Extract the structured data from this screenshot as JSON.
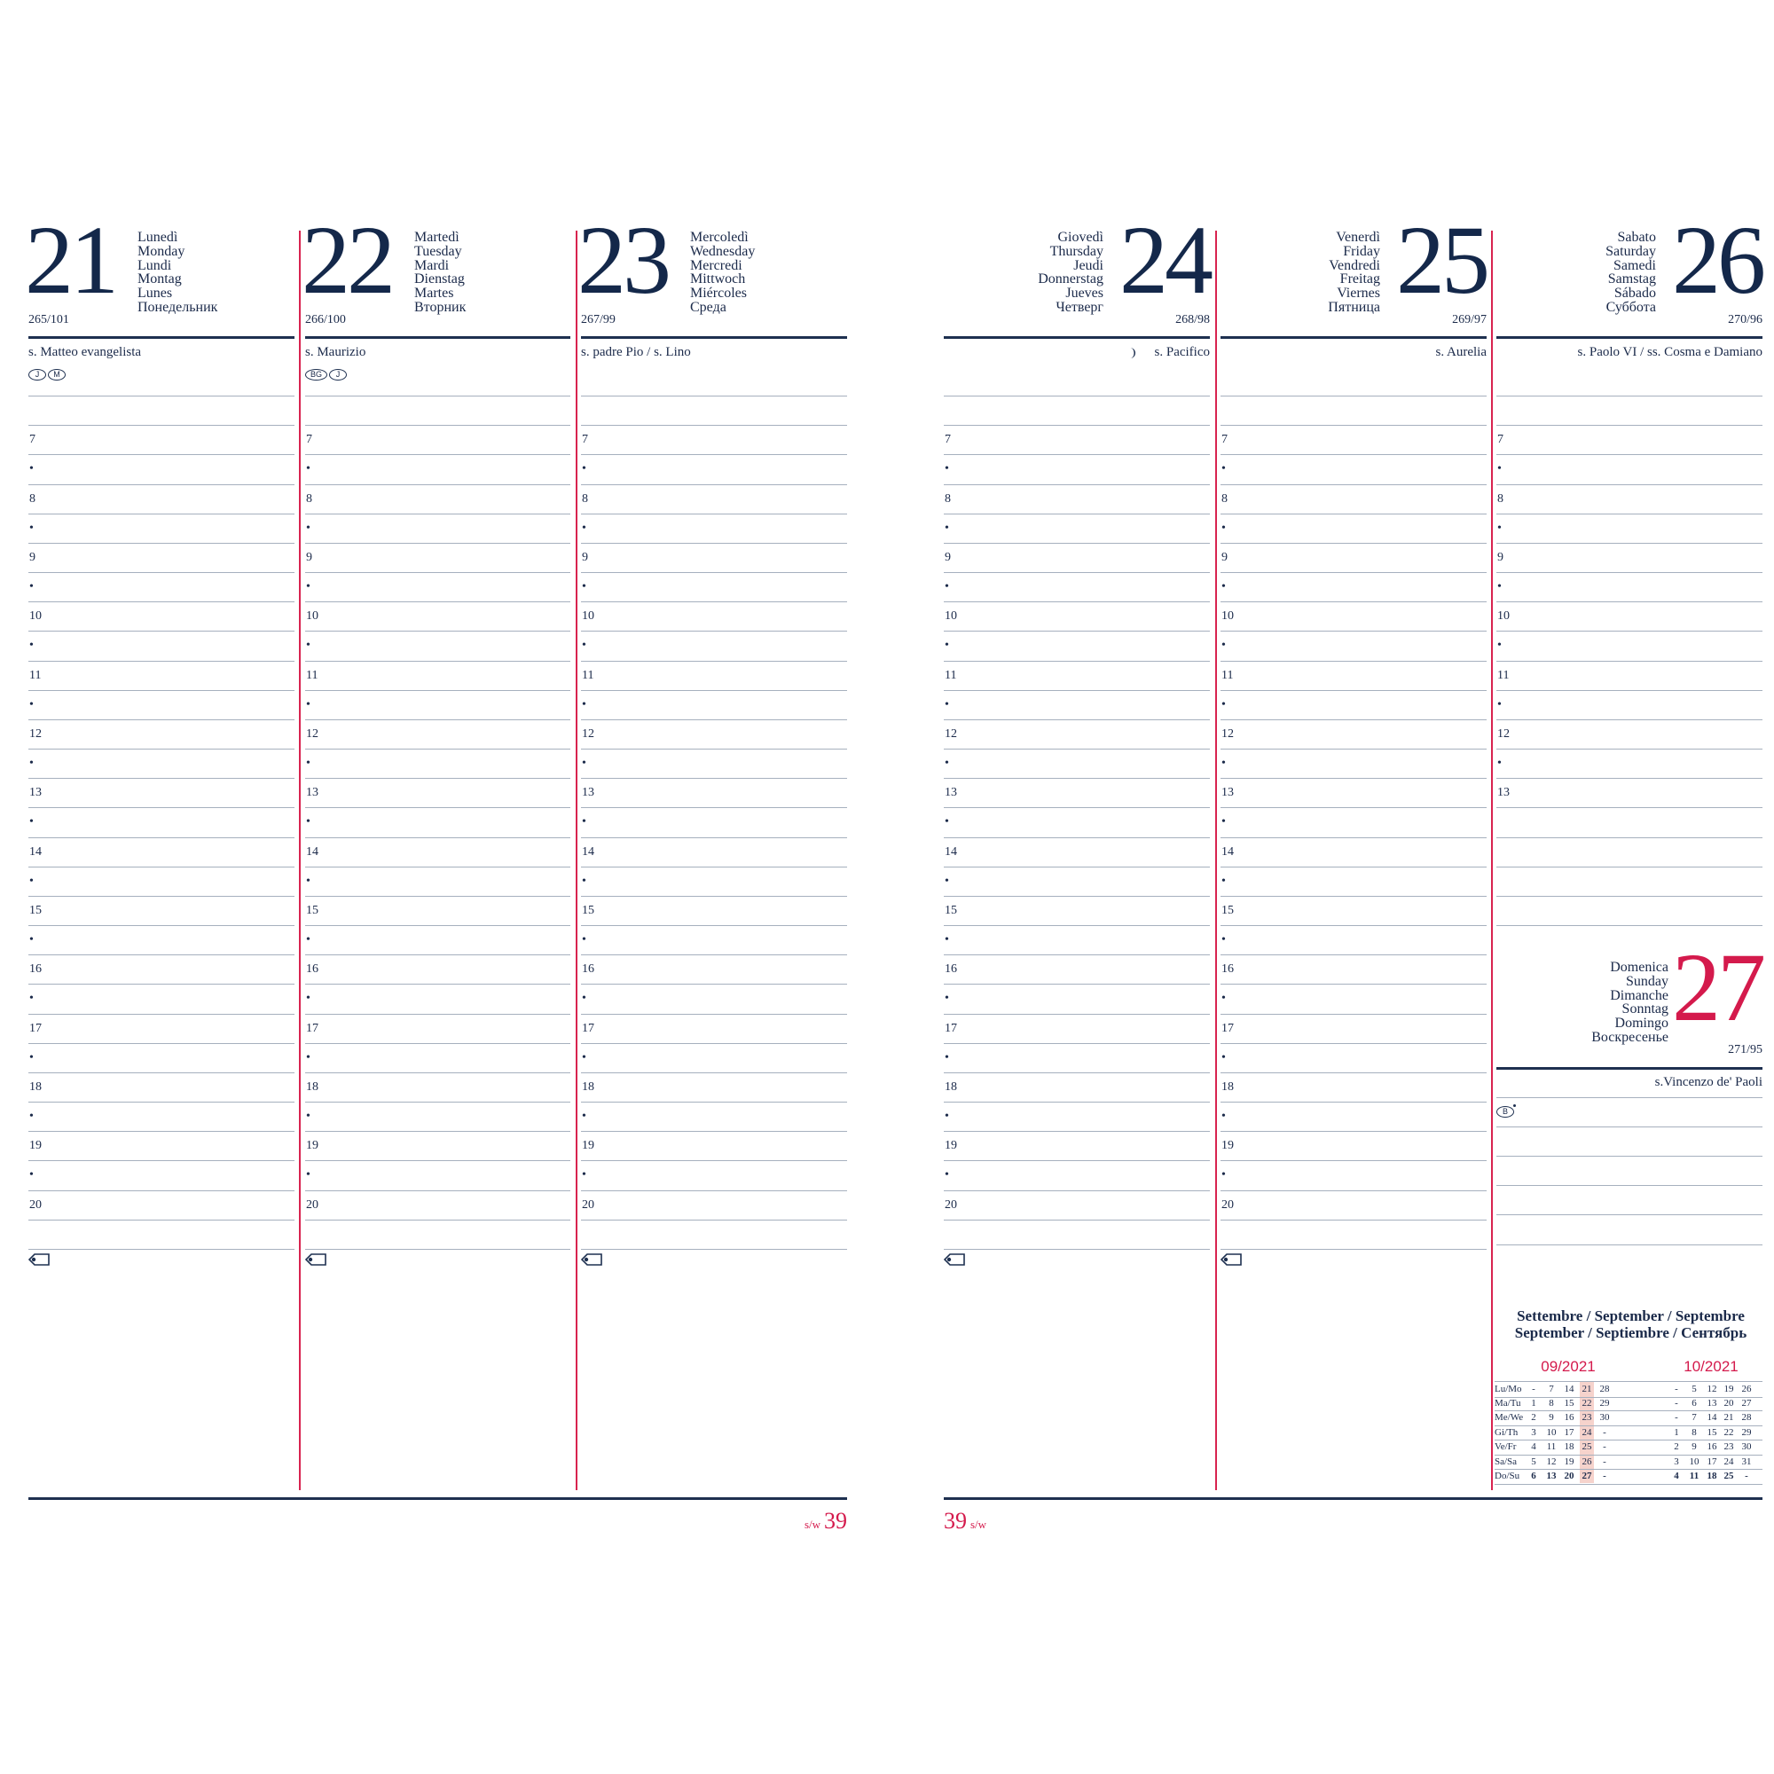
{
  "colors": {
    "navy": "#1b2a4a",
    "accent_red": "#d41a4c",
    "rule": "#a6b0be",
    "highlight": "#f6d3cc"
  },
  "hour_labels": [
    "7",
    "•",
    "8",
    "•",
    "9",
    "•",
    "10",
    "•",
    "11",
    "•",
    "12",
    "•",
    "13",
    "•",
    "14",
    "•",
    "15",
    "•",
    "16",
    "•",
    "17",
    "•",
    "18",
    "•",
    "19",
    "•",
    "20"
  ],
  "days": [
    {
      "number": "21",
      "names": [
        "Lunedì",
        "Monday",
        "Lundi",
        "Montag",
        "Lunes",
        "Понедельник"
      ],
      "day_of_year": "265/101",
      "saint": "s. Matteo evangelista",
      "badges": [
        {
          "label": "J"
        },
        {
          "label": "M"
        }
      ],
      "icon": "",
      "tag_icon": "tag-icon"
    },
    {
      "number": "22",
      "names": [
        "Martedì",
        "Tuesday",
        "Mardi",
        "Dienstag",
        "Martes",
        "Вторник"
      ],
      "day_of_year": "266/100",
      "saint": "s. Maurizio",
      "badges": [
        {
          "label": "BG"
        },
        {
          "label": "J"
        }
      ],
      "icon": "",
      "tag_icon": "tag-icon"
    },
    {
      "number": "23",
      "names": [
        "Mercoledì",
        "Wednesday",
        "Mercredi",
        "Mittwoch",
        "Miércoles",
        "Среда"
      ],
      "day_of_year": "267/99",
      "saint": "s. padre Pio / s. Lino",
      "badges": [],
      "icon": "",
      "tag_icon": "tag-icon"
    },
    {
      "number": "24",
      "names": [
        "Giovedì",
        "Thursday",
        "Jeudi",
        "Donnerstag",
        "Jueves",
        "Четверг"
      ],
      "day_of_year": "268/98",
      "saint": "s. Pacifico",
      "badges": [],
      "icon": "moon-phase-icon",
      "tag_icon": "tag-icon"
    },
    {
      "number": "25",
      "names": [
        "Venerdì",
        "Friday",
        "Vendredi",
        "Freitag",
        "Viernes",
        "Пятница"
      ],
      "day_of_year": "269/97",
      "saint": "s. Aurelia",
      "badges": [],
      "icon": "",
      "tag_icon": "tag-icon"
    },
    {
      "number": "26",
      "names": [
        "Sabato",
        "Saturday",
        "Samedi",
        "Samstag",
        "Sábado",
        "Суббота"
      ],
      "day_of_year": "270/96",
      "saint": "s. Paolo VI / ss. Cosma e Damiano",
      "badges": [],
      "icon": "",
      "hour_labels": [
        "7",
        "•",
        "8",
        "•",
        "9",
        "•",
        "10",
        "•",
        "11",
        "•",
        "12",
        "•",
        "13"
      ]
    }
  ],
  "sunday": {
    "number": "27",
    "names": [
      "Domenica",
      "Sunday",
      "Dimanche",
      "Sonntag",
      "Domingo",
      "Воскресенье"
    ],
    "day_of_year": "271/95",
    "saint": "s.Vincenzo de' Paoli",
    "badges": [
      {
        "label": "B",
        "dot": true
      }
    ]
  },
  "mini_calendar": {
    "heading_line1": "Settembre / September / Septembre",
    "heading_line2": "September / Septiembre / Сентябрь",
    "weekday_labels": [
      "Lu/Mo",
      "Ma/Tu",
      "Me/We",
      "Gi/Th",
      "Ve/Fr",
      "Sa/Sa",
      "Do/Su"
    ],
    "current_week_highlighted": true,
    "months": [
      {
        "label": "09/2021",
        "rows": [
          [
            "-",
            "7",
            "14",
            "21",
            "28"
          ],
          [
            "1",
            "8",
            "15",
            "22",
            "29"
          ],
          [
            "2",
            "9",
            "16",
            "23",
            "30"
          ],
          [
            "3",
            "10",
            "17",
            "24",
            "-"
          ],
          [
            "4",
            "11",
            "18",
            "25",
            "-"
          ],
          [
            "5",
            "12",
            "19",
            "26",
            "-"
          ],
          [
            "6",
            "13",
            "20",
            "27",
            "-"
          ]
        ]
      },
      {
        "label": "10/2021",
        "rows": [
          [
            "-",
            "5",
            "12",
            "19",
            "26"
          ],
          [
            "-",
            "6",
            "13",
            "20",
            "27"
          ],
          [
            "-",
            "7",
            "14",
            "21",
            "28"
          ],
          [
            "1",
            "8",
            "15",
            "22",
            "29"
          ],
          [
            "2",
            "9",
            "16",
            "23",
            "30"
          ],
          [
            "3",
            "10",
            "17",
            "24",
            "31"
          ],
          [
            "4",
            "11",
            "18",
            "25",
            "-"
          ]
        ]
      }
    ]
  },
  "footer": {
    "week_label": "s/w",
    "week_number": "39"
  }
}
